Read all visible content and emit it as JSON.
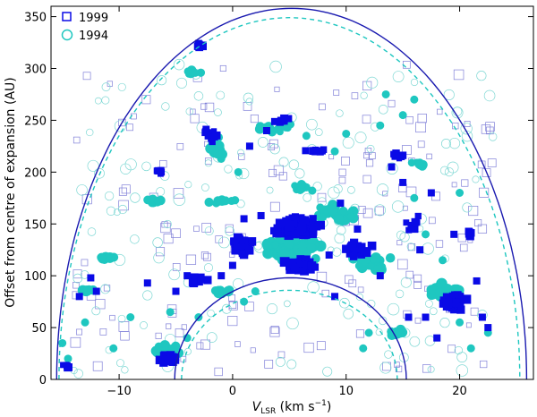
{
  "chart_data": {
    "type": "scatter",
    "title": "",
    "xlabel_symbol": "V",
    "xlabel_subscript": "LSR",
    "xlabel_units": " (km s",
    "xlabel_exp": "−1",
    "xlabel_close": ")",
    "ylabel": "Offset from centre of expansion (AU)",
    "xlim": [
      -16,
      26.5
    ],
    "ylim": [
      0,
      360
    ],
    "xticks": [
      -10,
      0,
      10,
      20
    ],
    "xtick_labels": [
      "−10",
      "0",
      "10",
      "20"
    ],
    "yticks": [
      0,
      50,
      100,
      150,
      200,
      250,
      300,
      350
    ],
    "ytick_labels": [
      "0",
      "50",
      "100",
      "150",
      "200",
      "250",
      "300",
      "350"
    ],
    "grid": false,
    "legend_position": "top-left",
    "colors": {
      "s1999": "#0a0ae6",
      "s1994": "#1fc7c0",
      "s1999_faint": "#8080d8",
      "s1994_faint": "#7fd8d4"
    },
    "series": [
      {
        "name": "1999",
        "marker": "square",
        "clusters": [
          {
            "x": -3.0,
            "y": 323,
            "n": 6,
            "dx": 0.8,
            "dy": 4,
            "size": 5
          },
          {
            "x": -2.0,
            "y": 236,
            "n": 14,
            "dx": 0.8,
            "dy": 8,
            "size": 5
          },
          {
            "x": 4.5,
            "y": 250,
            "n": 10,
            "dx": 1.0,
            "dy": 3,
            "size": 5
          },
          {
            "x": 7.5,
            "y": 220,
            "n": 10,
            "dx": 1.2,
            "dy": 4,
            "size": 5
          },
          {
            "x": -6.5,
            "y": 200,
            "n": 8,
            "dx": 0.6,
            "dy": 4,
            "size": 5
          },
          {
            "x": 1.0,
            "y": 130,
            "n": 30,
            "dx": 1.5,
            "dy": 14,
            "size": 6
          },
          {
            "x": 5.5,
            "y": 148,
            "n": 70,
            "dx": 2.5,
            "dy": 12,
            "size": 7
          },
          {
            "x": 6.0,
            "y": 110,
            "n": 40,
            "dx": 2.0,
            "dy": 10,
            "size": 7
          },
          {
            "x": 11.0,
            "y": 125,
            "n": 25,
            "dx": 2.0,
            "dy": 10,
            "size": 6
          },
          {
            "x": 19.5,
            "y": 75,
            "n": 30,
            "dx": 1.5,
            "dy": 15,
            "size": 7
          },
          {
            "x": -5.5,
            "y": 20,
            "n": 20,
            "dx": 1.2,
            "dy": 6,
            "size": 7
          },
          {
            "x": -3.0,
            "y": 95,
            "n": 14,
            "dx": 1.0,
            "dy": 6,
            "size": 6
          },
          {
            "x": 14.5,
            "y": 215,
            "n": 8,
            "dx": 1.0,
            "dy": 4,
            "size": 5
          },
          {
            "x": 16.0,
            "y": 150,
            "n": 10,
            "dx": 1.0,
            "dy": 10,
            "size": 5
          },
          {
            "x": -14.5,
            "y": 12,
            "n": 6,
            "dx": 0.6,
            "dy": 3,
            "size": 5
          },
          {
            "x": 21.0,
            "y": 140,
            "n": 6,
            "dx": 0.8,
            "dy": 8,
            "size": 5
          }
        ],
        "points": [
          [
            -13.5,
            80
          ],
          [
            -12.0,
            85
          ],
          [
            -12.5,
            98
          ],
          [
            -7.5,
            93
          ],
          [
            -5.0,
            85
          ],
          [
            -1.0,
            100
          ],
          [
            0.0,
            110
          ],
          [
            1.0,
            155
          ],
          [
            2.5,
            158
          ],
          [
            8.5,
            120
          ],
          [
            9.0,
            80
          ],
          [
            15.5,
            60
          ],
          [
            16.5,
            125
          ],
          [
            17.0,
            60
          ],
          [
            18.0,
            40
          ],
          [
            22.0,
            60
          ],
          [
            22.5,
            50
          ],
          [
            21.5,
            95
          ],
          [
            19.5,
            140
          ],
          [
            17.5,
            180
          ],
          [
            15.0,
            190
          ],
          [
            13.0,
            100
          ],
          [
            11.0,
            145
          ],
          [
            -4.0,
            100
          ],
          [
            1.5,
            225
          ],
          [
            3.0,
            240
          ],
          [
            9.5,
            170
          ],
          [
            14.0,
            205
          ]
        ]
      },
      {
        "name": "1994",
        "marker": "circle",
        "clusters": [
          {
            "x": -3.5,
            "y": 296,
            "n": 10,
            "dx": 0.8,
            "dy": 4,
            "size": 6
          },
          {
            "x": -1.5,
            "y": 225,
            "n": 20,
            "dx": 1.0,
            "dy": 14,
            "size": 7
          },
          {
            "x": 3.5,
            "y": 243,
            "n": 16,
            "dx": 2.0,
            "dy": 5,
            "size": 6
          },
          {
            "x": -7.0,
            "y": 172,
            "n": 12,
            "dx": 1.2,
            "dy": 3,
            "size": 6
          },
          {
            "x": -1.0,
            "y": 172,
            "n": 12,
            "dx": 1.5,
            "dy": 3,
            "size": 6
          },
          {
            "x": 5.5,
            "y": 125,
            "n": 80,
            "dx": 3.5,
            "dy": 18,
            "size": 8
          },
          {
            "x": 9.0,
            "y": 160,
            "n": 30,
            "dx": 2.5,
            "dy": 12,
            "size": 7
          },
          {
            "x": 12.0,
            "y": 110,
            "n": 30,
            "dx": 2.5,
            "dy": 12,
            "size": 7
          },
          {
            "x": 18.5,
            "y": 85,
            "n": 30,
            "dx": 2.0,
            "dy": 10,
            "size": 8
          },
          {
            "x": -6.0,
            "y": 28,
            "n": 25,
            "dx": 1.5,
            "dy": 6,
            "size": 7
          },
          {
            "x": -13.0,
            "y": 86,
            "n": 10,
            "dx": 1.0,
            "dy": 2,
            "size": 7
          },
          {
            "x": -11.0,
            "y": 117,
            "n": 10,
            "dx": 1.0,
            "dy": 2,
            "size": 7
          },
          {
            "x": 16.5,
            "y": 208,
            "n": 10,
            "dx": 1.0,
            "dy": 3,
            "size": 6
          },
          {
            "x": 14.5,
            "y": 45,
            "n": 10,
            "dx": 1.0,
            "dy": 5,
            "size": 7
          },
          {
            "x": -1.0,
            "y": 85,
            "n": 10,
            "dx": 1.2,
            "dy": 6,
            "size": 7
          },
          {
            "x": 6.0,
            "y": 185,
            "n": 10,
            "dx": 1.5,
            "dy": 5,
            "size": 6
          }
        ],
        "points": [
          [
            -3.0,
            60
          ],
          [
            -4.0,
            40
          ],
          [
            -5.5,
            65
          ],
          [
            -9.0,
            60
          ],
          [
            -13.0,
            55
          ],
          [
            1.0,
            75
          ],
          [
            2.0,
            85
          ],
          [
            6.5,
            235
          ],
          [
            10.0,
            237
          ],
          [
            13.0,
            245
          ],
          [
            15.0,
            255
          ],
          [
            16.0,
            270
          ],
          [
            13.5,
            275
          ],
          [
            9.0,
            220
          ],
          [
            16.0,
            175
          ],
          [
            20.0,
            180
          ],
          [
            17.0,
            140
          ],
          [
            18.5,
            115
          ],
          [
            20.0,
            55
          ],
          [
            21.0,
            30
          ],
          [
            22.5,
            45
          ],
          [
            11.5,
            30
          ],
          [
            12.0,
            45
          ],
          [
            -10.5,
            30
          ],
          [
            -15.0,
            35
          ],
          [
            -14.5,
            20
          ],
          [
            0.5,
            200
          ]
        ]
      }
    ],
    "curves": [
      {
        "name": "outer-solid",
        "color": "#1a1ab0",
        "style": "solid",
        "center": 5.2,
        "half_width": 20.7,
        "height": 358
      },
      {
        "name": "outer-dashed",
        "color": "#1fc7c0",
        "style": "dashed",
        "center": 5.0,
        "half_width": 20.3,
        "height": 349
      },
      {
        "name": "inner-solid",
        "color": "#1a1ab0",
        "style": "solid",
        "center": 5.1,
        "half_width": 10.2,
        "height": 98
      },
      {
        "name": "inner-dashed",
        "color": "#1fc7c0",
        "style": "dashed",
        "center": 5.0,
        "half_width": 9.5,
        "height": 86
      }
    ]
  }
}
